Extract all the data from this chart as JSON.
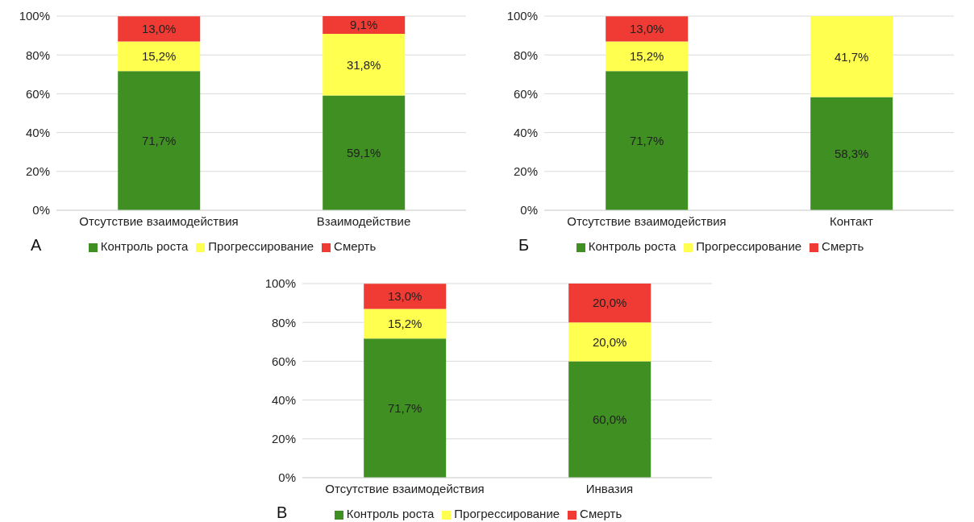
{
  "chart_data": [
    {
      "type": "bar",
      "stacked": true,
      "categories": [
        "Отсутствие взаимодействия",
        "Взаимодействие"
      ],
      "ylim": [
        0,
        100
      ],
      "yticks": [
        {
          "value": 0,
          "label": "0%"
        },
        {
          "value": 20,
          "label": "20%"
        },
        {
          "value": 40,
          "label": "40%"
        },
        {
          "value": 60,
          "label": "60%"
        },
        {
          "value": 80,
          "label": "80%"
        },
        {
          "value": 100,
          "label": "100%"
        }
      ],
      "grid": "y",
      "legend": "bottom",
      "annotations": [
        "А"
      ],
      "series": [
        {
          "name": "Контроль роста",
          "color": "#3f8f22",
          "values": [
            71.7,
            59.1
          ],
          "value_labels": [
            "71,7%",
            "59,1%"
          ]
        },
        {
          "name": "Прогрессирование",
          "color": "#ffff4f",
          "values": [
            15.2,
            31.8
          ],
          "value_labels": [
            "15,2%",
            "31,8%"
          ]
        },
        {
          "name": "Смерть",
          "color": "#ef3b33",
          "values": [
            13.0,
            9.1
          ],
          "value_labels": [
            "13,0%",
            "9,1%"
          ]
        }
      ]
    },
    {
      "type": "bar",
      "stacked": true,
      "categories": [
        "Отсутствие взаимодействия",
        "Контакт"
      ],
      "ylim": [
        0,
        100
      ],
      "yticks": [
        {
          "value": 0,
          "label": "0%"
        },
        {
          "value": 20,
          "label": "20%"
        },
        {
          "value": 40,
          "label": "40%"
        },
        {
          "value": 60,
          "label": "60%"
        },
        {
          "value": 80,
          "label": "80%"
        },
        {
          "value": 100,
          "label": "100%"
        }
      ],
      "grid": "y",
      "legend": "bottom",
      "annotations": [
        "Б"
      ],
      "series": [
        {
          "name": "Контроль роста",
          "color": "#3f8f22",
          "values": [
            71.7,
            58.3
          ],
          "value_labels": [
            "71,7%",
            "58,3%"
          ]
        },
        {
          "name": "Прогрессирование",
          "color": "#ffff4f",
          "values": [
            15.2,
            41.7
          ],
          "value_labels": [
            "15,2%",
            "41,7%"
          ]
        },
        {
          "name": "Смерть",
          "color": "#ef3b33",
          "values": [
            13.0,
            null
          ],
          "value_labels": [
            "13,0%",
            null
          ]
        }
      ]
    },
    {
      "type": "bar",
      "stacked": true,
      "categories": [
        "Отсутствие взаимодействия",
        "Инвазия"
      ],
      "ylim": [
        0,
        100
      ],
      "yticks": [
        {
          "value": 0,
          "label": "0%"
        },
        {
          "value": 20,
          "label": "20%"
        },
        {
          "value": 40,
          "label": "40%"
        },
        {
          "value": 60,
          "label": "60%"
        },
        {
          "value": 80,
          "label": "80%"
        },
        {
          "value": 100,
          "label": "100%"
        }
      ],
      "grid": "y",
      "legend": "bottom",
      "annotations": [
        "В"
      ],
      "series": [
        {
          "name": "Контроль роста",
          "color": "#3f8f22",
          "values": [
            71.7,
            60.0
          ],
          "value_labels": [
            "71,7%",
            "60,0%"
          ]
        },
        {
          "name": "Прогрессирование",
          "color": "#ffff4f",
          "values": [
            15.2,
            20.0
          ],
          "value_labels": [
            "15,2%",
            "20,0%"
          ]
        },
        {
          "name": "Смерть",
          "color": "#ef3b33",
          "values": [
            13.0,
            20.0
          ],
          "value_labels": [
            "13,0%",
            "20,0%"
          ]
        }
      ]
    }
  ]
}
